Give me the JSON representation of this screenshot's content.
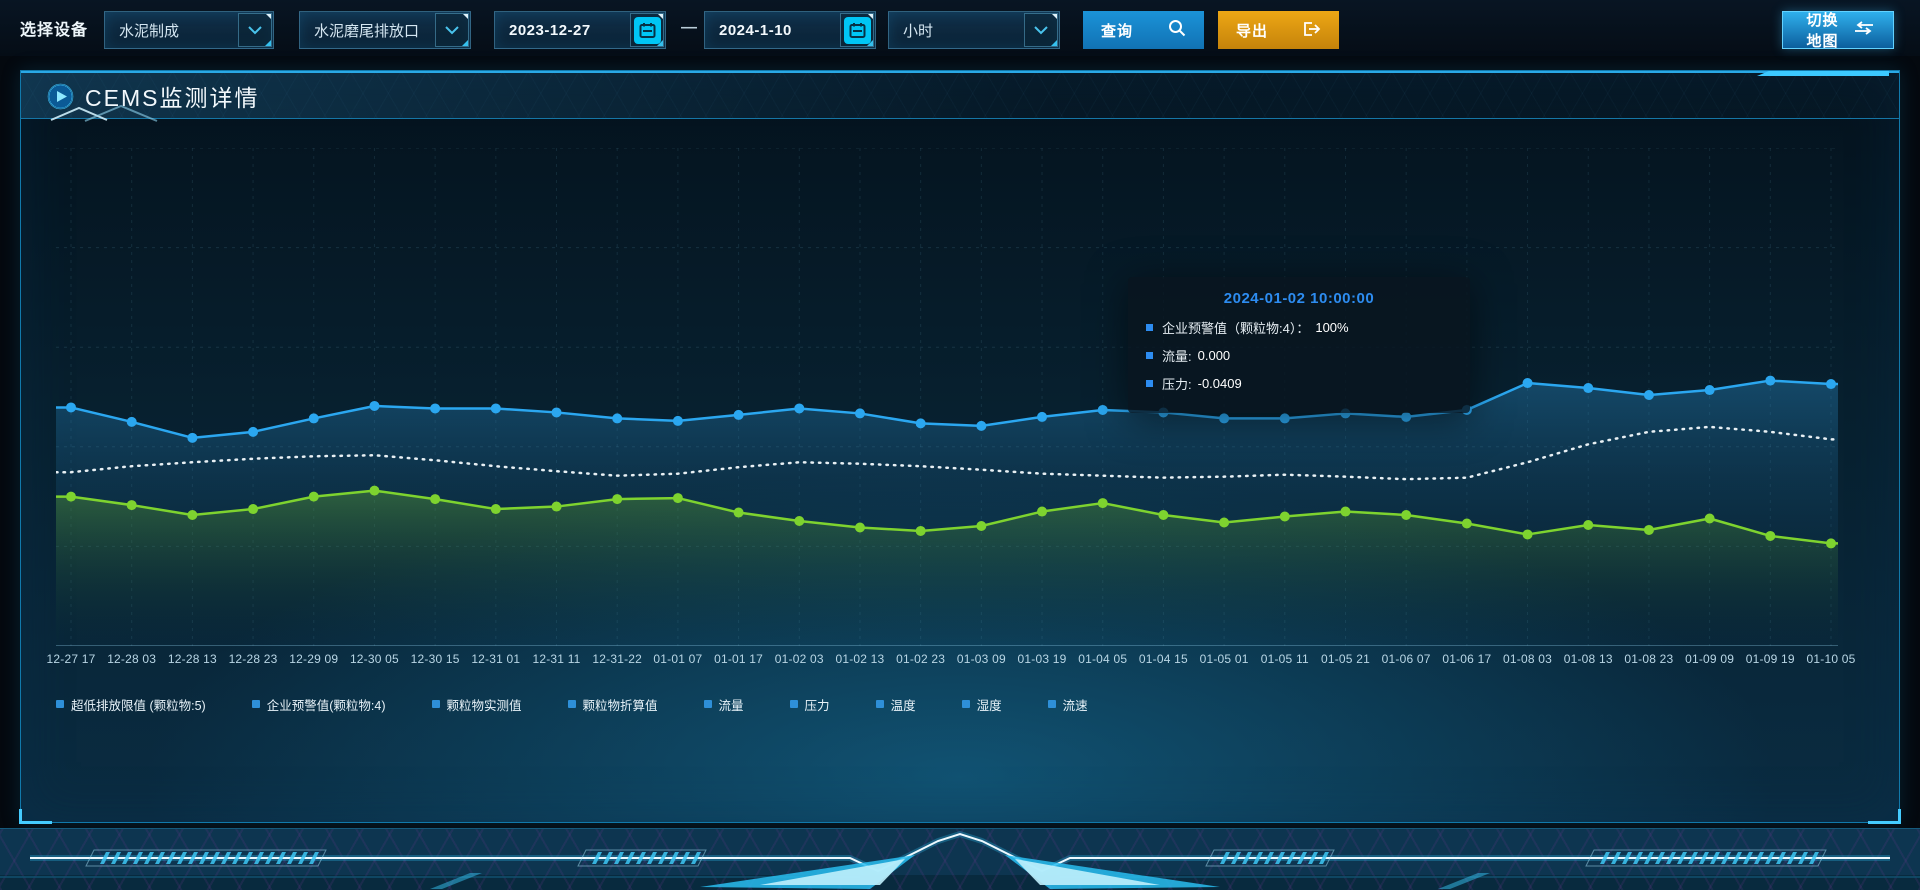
{
  "toolbar": {
    "device_label": "选择设备",
    "device_type_select": "水泥制成",
    "outlet_select": "水泥磨尾排放口",
    "date_start": "2023-12-27",
    "date_separator": "—",
    "date_end": "2024-1-10",
    "interval_select": "小时",
    "query_label": "查询",
    "export_label": "导出",
    "switch_map_label": "切换地图"
  },
  "panel": {
    "title": "CEMS监测详情"
  },
  "tooltip": {
    "title": "2024-01-02 10:00:00",
    "items": [
      {
        "label": "企业预警值（颗粒物:4）：",
        "value": "100%"
      },
      {
        "label": "流量:",
        "value": "0.000"
      },
      {
        "label": "压力:",
        "value": "-0.0409"
      }
    ]
  },
  "legend": [
    "超低排放限值 (颗粒物:5)",
    "企业预警值(颗粒物:4)",
    "颗粒物实测值",
    "颗粒物折算值",
    "流量",
    "压力",
    "温度",
    "湿度",
    "流速"
  ],
  "colors": {
    "accent_cyan": "#3cc9ff",
    "query_blue": "#1b93d8",
    "export_orange": "#eda715",
    "tooltip_blue": "#2d8cf0",
    "series_blue": "#2ba7f0",
    "series_white": "#e8f0f4",
    "series_green": "#7ed32f"
  },
  "chart_data": {
    "type": "line",
    "title": "",
    "xlabel": "",
    "ylabel": "",
    "ylim": [
      0,
      100
    ],
    "grid": "dashed",
    "legend_position": "bottom",
    "categories": [
      "12-27 17",
      "12-28 03",
      "12-28 13",
      "12-28 23",
      "12-29 09",
      "12-30 05",
      "12-30 15",
      "12-31 01",
      "12-31 11",
      "12-31-22",
      "01-01 07",
      "01-01 17",
      "01-02 03",
      "01-02 13",
      "01-02 23",
      "01-03 09",
      "01-03 19",
      "01-04 05",
      "01-04 15",
      "01-05 01",
      "01-05 11",
      "01-05 21",
      "01-06 07",
      "01-06 17",
      "01-08 03",
      "01-08 13",
      "01-08 23",
      "01-09 09",
      "01-09 19",
      "01-10 05"
    ],
    "series": [
      {
        "name": "series-blue",
        "color": "#2ba7f0",
        "style": "solid",
        "dots": true,
        "area": true,
        "values": [
          47.9,
          45.0,
          41.8,
          43.0,
          45.7,
          48.2,
          47.7,
          47.7,
          46.9,
          45.7,
          45.2,
          46.4,
          47.7,
          46.7,
          44.7,
          44.2,
          46.0,
          47.4,
          46.9,
          45.7,
          45.7,
          46.7,
          46.0,
          47.4,
          52.8,
          51.8,
          50.4,
          51.4,
          53.3,
          52.6
        ]
      },
      {
        "name": "series-white-dotted",
        "color": "#e8f0f4",
        "style": "dotted",
        "dots": false,
        "area": false,
        "values": [
          34.9,
          36.1,
          36.9,
          37.6,
          38.1,
          38.3,
          37.3,
          36.1,
          35.1,
          34.2,
          34.6,
          35.9,
          36.9,
          36.6,
          36.1,
          35.4,
          34.6,
          34.2,
          33.8,
          34.0,
          34.4,
          34.0,
          33.5,
          33.8,
          36.9,
          40.5,
          43.0,
          44.0,
          43.0,
          41.5
        ]
      },
      {
        "name": "series-green",
        "color": "#7ed32f",
        "style": "solid",
        "dots": true,
        "area": true,
        "values": [
          30.0,
          28.3,
          26.3,
          27.5,
          30.0,
          31.2,
          29.5,
          27.5,
          28.0,
          29.5,
          29.7,
          26.8,
          25.1,
          23.8,
          23.1,
          24.1,
          27.0,
          28.7,
          26.3,
          24.8,
          26.0,
          27.0,
          26.3,
          24.6,
          22.4,
          24.3,
          23.3,
          25.6,
          22.1,
          20.6
        ]
      }
    ]
  }
}
